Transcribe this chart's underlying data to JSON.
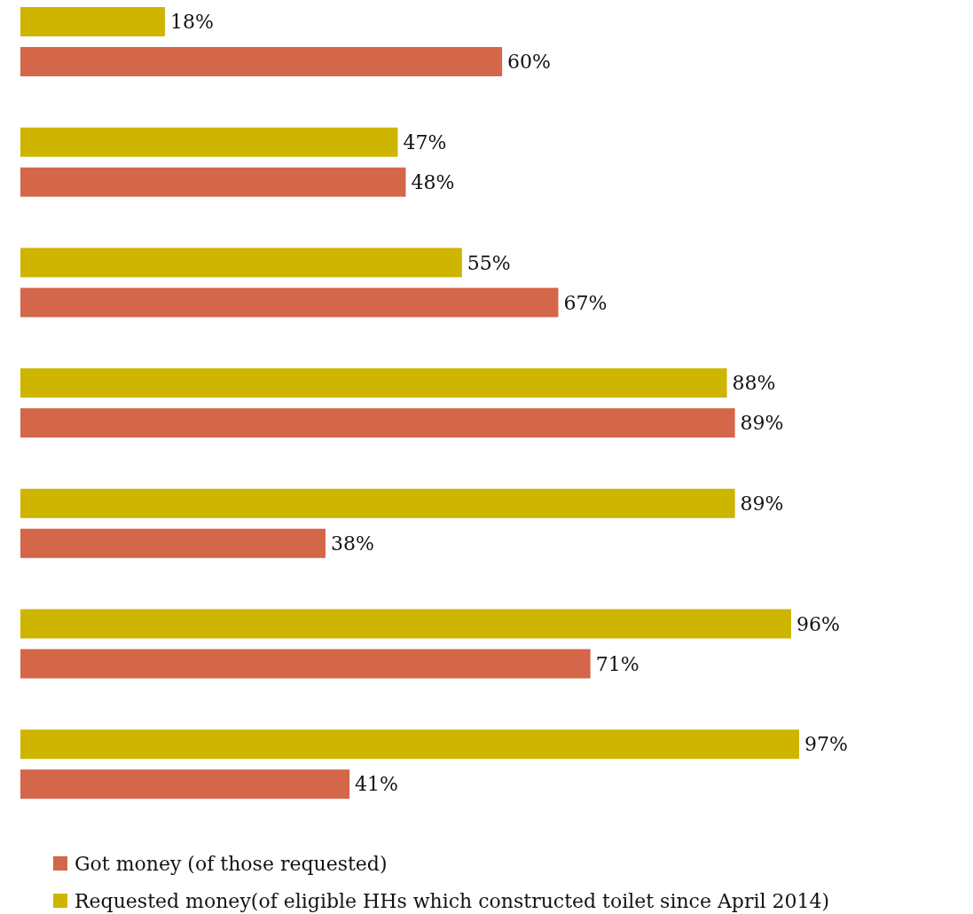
{
  "chart_data": {
    "type": "bar",
    "orientation": "horizontal",
    "categories": [
      null,
      null,
      null,
      null,
      null,
      null,
      null
    ],
    "series": [
      {
        "name": "Requested money(of eligible HHs which constructed toilet since April 2014)",
        "color": "#cdb500",
        "values": [
          18,
          47,
          55,
          88,
          89,
          96,
          97
        ],
        "value_labels": [
          "18%",
          "47%",
          "55%",
          "88%",
          "89%",
          "96%",
          "97%"
        ]
      },
      {
        "name": "Got money (of those requested)",
        "color": "#d4664a",
        "values": [
          60,
          48,
          67,
          89,
          38,
          71,
          41
        ],
        "value_labels": [
          "60%",
          "48%",
          "67%",
          "89%",
          "38%",
          "71%",
          "41%"
        ]
      }
    ],
    "legend": "bottom"
  }
}
